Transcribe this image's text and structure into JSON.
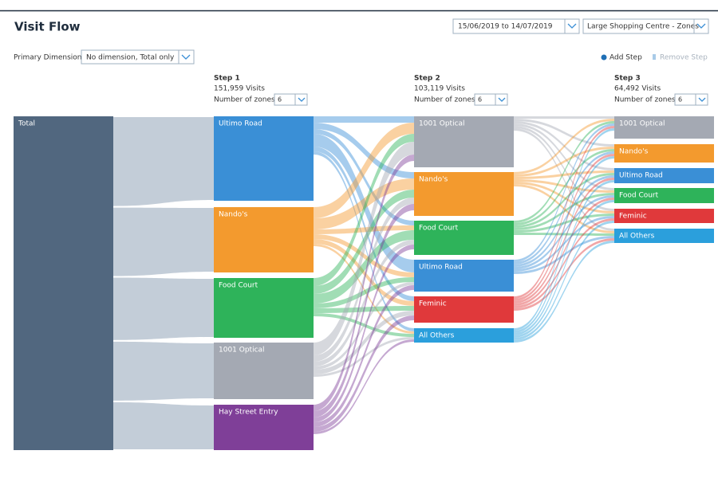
{
  "header": {
    "title": "Visit Flow",
    "date_range": "15/06/2019 to 14/07/2019",
    "location": "Large Shopping Centre - Zones"
  },
  "toolbar": {
    "primary_dimension_label": "Primary Dimension:",
    "primary_dimension_value": "No dimension, Total only",
    "add_step": "Add Step",
    "remove_step": "Remove Step"
  },
  "total": {
    "label": "Total",
    "color": "#51677f"
  },
  "steps": [
    {
      "title": "Step 1",
      "visits": "151,959 Visits",
      "zones_label": "Number of zones:",
      "zones_value": 6,
      "nodes": [
        {
          "label": "Ultimo Road",
          "color": "#3a8fd6"
        },
        {
          "label": "Nando's",
          "color": "#f39a2e"
        },
        {
          "label": "Food Court",
          "color": "#2eb35a"
        },
        {
          "label": "1001 Optical",
          "color": "#a4a9b3"
        },
        {
          "label": "Hay Street Entry",
          "color": "#7f3f98"
        }
      ]
    },
    {
      "title": "Step 2",
      "visits": "103,119 Visits",
      "zones_label": "Number of zones:",
      "zones_value": 6,
      "nodes": [
        {
          "label": "1001 Optical",
          "color": "#a4a9b3"
        },
        {
          "label": "Nando's",
          "color": "#f39a2e"
        },
        {
          "label": "Food Court",
          "color": "#2eb35a"
        },
        {
          "label": "Ultimo Road",
          "color": "#3a8fd6"
        },
        {
          "label": "Feminic",
          "color": "#e0393b"
        },
        {
          "label": "All Others",
          "color": "#2b9fdc"
        }
      ]
    },
    {
      "title": "Step 3",
      "visits": "64,492 Visits",
      "zones_label": "Number of zones:",
      "zones_value": 6,
      "nodes": [
        {
          "label": "1001 Optical",
          "color": "#a4a9b3"
        },
        {
          "label": "Nando's",
          "color": "#f39a2e"
        },
        {
          "label": "Ultimo Road",
          "color": "#3a8fd6"
        },
        {
          "label": "Food Court",
          "color": "#2eb35a"
        },
        {
          "label": "Feminic",
          "color": "#e0393b"
        },
        {
          "label": "All Others",
          "color": "#2b9fdc"
        }
      ]
    }
  ]
}
